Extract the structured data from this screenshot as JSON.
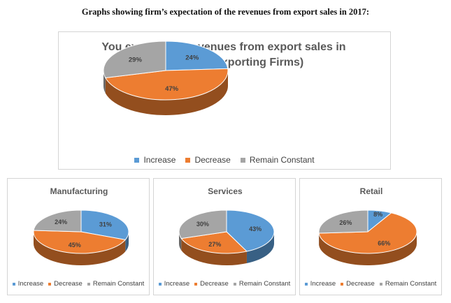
{
  "heading": "Graphs showing firm’s expectation of the revenues from export sales in 2017:",
  "colors": {
    "increase": "#5b9bd5",
    "decrease": "#ed7d31",
    "remain": "#a5a5a5"
  },
  "chart_data": [
    {
      "type": "pie",
      "title_lines": [
        "You expect that revenues from export sales in",
        "2017 will (All Exporting Firms)"
      ],
      "categories": [
        "Increase",
        "Decrease",
        "Remain Constant"
      ],
      "values": [
        24,
        47,
        29
      ],
      "data_labels": [
        "24%",
        "47%",
        "29%"
      ],
      "legend": {
        "position": "bottom",
        "entries": [
          "Increase",
          "Decrease",
          "Remain Constant"
        ]
      }
    },
    {
      "type": "pie",
      "title": "Manufacturing",
      "categories": [
        "Increase",
        "Decrease",
        "Remain Constant"
      ],
      "values": [
        31,
        45,
        24
      ],
      "data_labels": [
        "31%",
        "45%",
        "24%"
      ],
      "legend": {
        "position": "bottom",
        "entries": [
          "Increase",
          "Decrease",
          "Remain Constant"
        ]
      }
    },
    {
      "type": "pie",
      "title": "Services",
      "categories": [
        "Increase",
        "Decrease",
        "Remain Constant"
      ],
      "values": [
        43,
        27,
        30
      ],
      "data_labels": [
        "43%",
        "27%",
        "30%"
      ],
      "legend": {
        "position": "bottom",
        "entries": [
          "Increase",
          "Decrease",
          "Remain Constant"
        ]
      }
    },
    {
      "type": "pie",
      "title": "Retail",
      "categories": [
        "Increase",
        "Decrease",
        "Remain Constant"
      ],
      "values": [
        8,
        66,
        26
      ],
      "data_labels": [
        "8%",
        "66%",
        "26%"
      ],
      "legend": {
        "position": "bottom",
        "entries": [
          "Increase",
          "Decrease",
          "Remain Constant"
        ]
      }
    }
  ]
}
